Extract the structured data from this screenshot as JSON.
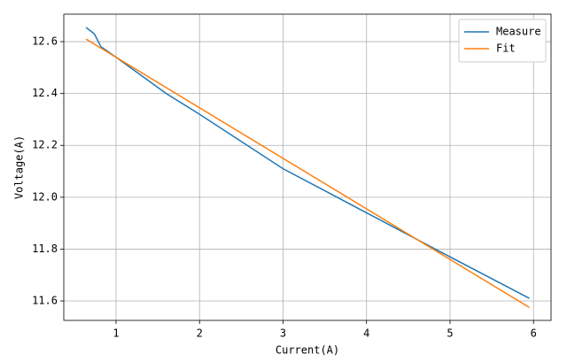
{
  "chart_data": {
    "type": "line",
    "x_label": "Current(A)",
    "y_label": "Voltage(A)",
    "xlim": [
      0.374,
      6.21
    ],
    "ylim": [
      11.525,
      12.706
    ],
    "xticks": [
      1,
      2,
      3,
      4,
      5,
      6
    ],
    "yticks": [
      11.6,
      11.8,
      {
        "value": 12,
        "label": "12.0"
      },
      12.2,
      12.4,
      12.6
    ],
    "grid": true,
    "legend": "upper right",
    "series": [
      {
        "name": "Measure",
        "color": "#1f77b4",
        "x": [
          0.64,
          0.74,
          0.82,
          1.0,
          1.6,
          2.0,
          3.0,
          4.0,
          5.0,
          5.95
        ],
        "values": [
          12.655,
          12.63,
          12.58,
          12.54,
          12.4,
          12.32,
          12.11,
          11.94,
          11.77,
          11.61
        ]
      },
      {
        "name": "Fit",
        "color": "#ff7f0e",
        "x": [
          0.64,
          5.95
        ],
        "values": [
          12.61,
          11.575
        ]
      }
    ]
  }
}
